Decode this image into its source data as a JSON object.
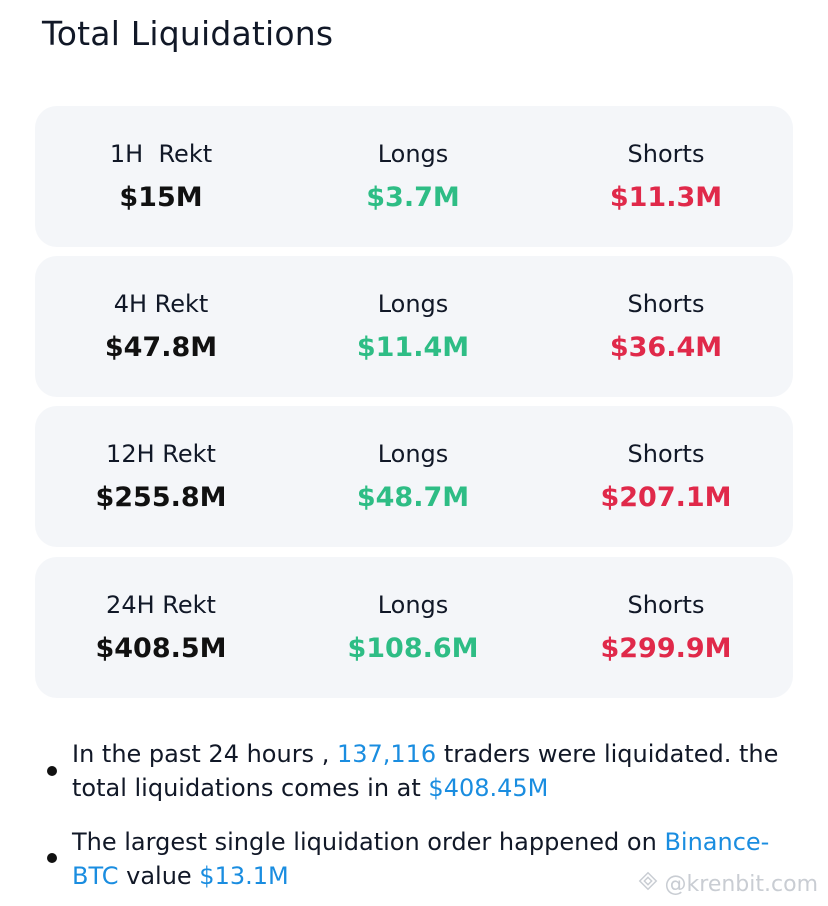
{
  "header": {
    "title": "Total Liquidations"
  },
  "cards": [
    {
      "rekt_label": "1H  Rekt",
      "rekt_value": "$15M",
      "longs_label": "Longs",
      "longs_value": "$3.7M",
      "shorts_label": "Shorts",
      "shorts_value": "$11.3M"
    },
    {
      "rekt_label": "4H Rekt",
      "rekt_value": "$47.8M",
      "longs_label": "Longs",
      "longs_value": "$11.4M",
      "shorts_label": "Shorts",
      "shorts_value": "$36.4M"
    },
    {
      "rekt_label": "12H Rekt",
      "rekt_value": "$255.8M",
      "longs_label": "Longs",
      "longs_value": "$48.7M",
      "shorts_label": "Shorts",
      "shorts_value": "$207.1M"
    },
    {
      "rekt_label": "24H Rekt",
      "rekt_value": "$408.5M",
      "longs_label": "Longs",
      "longs_value": "$108.6M",
      "shorts_label": "Shorts",
      "shorts_value": "$299.9M"
    }
  ],
  "summary": {
    "b1": {
      "t1": "In the past 24 hours , ",
      "traders": "137,116",
      "t2": " traders were liquidated. the total liquidations comes in at ",
      "total": "$408.45M"
    },
    "b2": {
      "t1": "The largest single liquidation order happened on ",
      "exchange": "Binance-BTC",
      "t2": " value ",
      "value": "$13.1M"
    }
  },
  "watermark": {
    "text": "@krenbit.com",
    "icon": "diamond-logo-icon"
  },
  "colors": {
    "long": "#2ebd85",
    "short": "#e0294a",
    "highlight": "#1a8de0",
    "card_bg": "#f4f6f9"
  }
}
